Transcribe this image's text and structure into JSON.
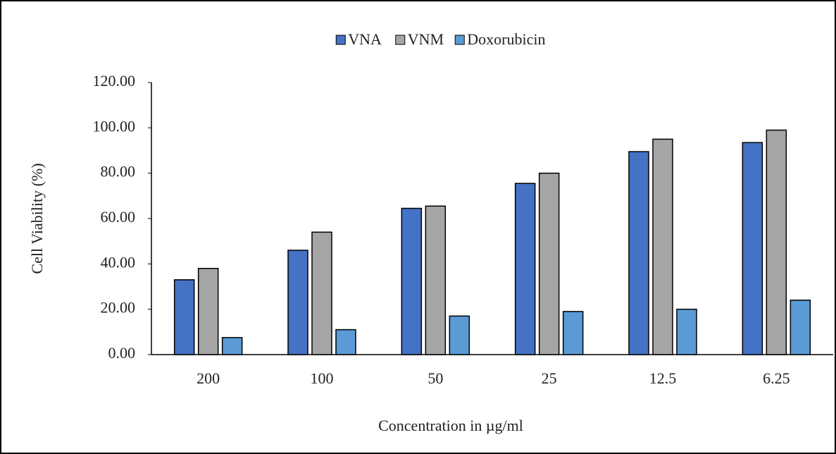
{
  "chart_data": {
    "type": "bar",
    "legend": "top",
    "xlabel": "Concentration in µg/ml",
    "ylabel": "Cell Viability (%)",
    "categories": [
      "200",
      "100",
      "50",
      "25",
      "12.5",
      "6.25"
    ],
    "series": [
      {
        "name": "VNA",
        "color": "#4472c4",
        "values": [
          33,
          46,
          64.5,
          75.5,
          89.5,
          93.5
        ]
      },
      {
        "name": "VNM",
        "color": "#a5a5a5",
        "values": [
          38,
          54,
          65.5,
          80,
          95,
          99
        ]
      },
      {
        "name": "Doxorubicin",
        "color": "#5b9bd5",
        "values": [
          7.5,
          11,
          17,
          19,
          20,
          24
        ]
      }
    ],
    "ylim": [
      0,
      120
    ],
    "yticks": [
      {
        "value": 0,
        "label": "0.00"
      },
      {
        "value": 20,
        "label": "20.00"
      },
      {
        "value": 40,
        "label": "40.00"
      },
      {
        "value": 60,
        "label": "60.00"
      },
      {
        "value": 80,
        "label": "80.00"
      },
      {
        "value": 100,
        "label": "100.00"
      },
      {
        "value": 120,
        "label": "120.00"
      }
    ]
  }
}
